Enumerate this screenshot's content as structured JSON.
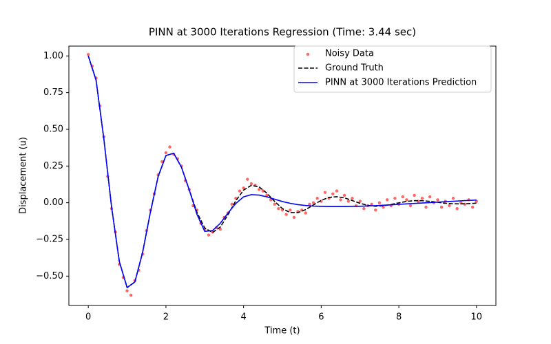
{
  "chart_data": {
    "type": "line",
    "title": "PINN at 3000 Iterations Regression (Time: 3.44 sec)",
    "x_label": "Time (t)",
    "y_label": "Displacement (u)",
    "xlim": [
      -0.5,
      10.5
    ],
    "ylim": [
      -0.7,
      1.067
    ],
    "xticks": [
      0,
      2,
      4,
      6,
      8,
      10
    ],
    "yticks": [
      {
        "value": -0.5,
        "label": "−0.50"
      },
      {
        "value": -0.25,
        "label": "−0.25"
      },
      {
        "value": 0,
        "label": "0.00"
      },
      {
        "value": 0.25,
        "label": "0.25"
      },
      {
        "value": 0.5,
        "label": "0.50"
      },
      {
        "value": 0.75,
        "label": "0.75"
      },
      {
        "value": 1.0,
        "label": "1.00"
      }
    ],
    "legend": "upper right",
    "series": [
      {
        "name": "Noisy Data",
        "color": "#ff0000",
        "style": "scatter",
        "x": [
          0,
          0.1,
          0.2,
          0.3,
          0.4,
          0.5,
          0.6,
          0.7,
          0.8,
          0.9,
          1,
          1.1,
          1.2,
          1.3,
          1.4,
          1.5,
          1.6,
          1.7,
          1.8,
          1.9,
          2,
          2.1,
          2.2,
          2.3,
          2.4,
          2.5,
          2.6,
          2.7,
          2.8,
          2.9,
          3,
          3.1,
          3.2,
          3.3,
          3.4,
          3.5,
          3.6,
          3.7,
          3.8,
          3.9,
          4,
          4.1,
          4.2,
          4.3,
          4.4,
          4.5,
          4.6,
          4.7,
          4.8,
          4.9,
          5,
          5.1,
          5.2,
          5.3,
          5.4,
          5.5,
          5.6,
          5.7,
          5.8,
          5.9,
          6,
          6.1,
          6.2,
          6.3,
          6.4,
          6.5,
          6.6,
          6.7,
          6.8,
          6.9,
          7,
          7.1,
          7.2,
          7.3,
          7.4,
          7.5,
          7.6,
          7.7,
          7.8,
          7.9,
          8,
          8.1,
          8.2,
          8.3,
          8.4,
          8.5,
          8.6,
          8.7,
          8.8,
          8.9,
          9,
          9.1,
          9.2,
          9.3,
          9.4,
          9.5,
          9.6,
          9.7,
          9.8,
          9.9,
          10
        ],
        "values": [
          1.01,
          0.93,
          0.85,
          0.66,
          0.45,
          0.18,
          -0.04,
          -0.2,
          -0.42,
          -0.51,
          -0.6,
          -0.63,
          -0.53,
          -0.46,
          -0.35,
          -0.19,
          -0.05,
          0.06,
          0.19,
          0.28,
          0.34,
          0.38,
          0.33,
          0.3,
          0.25,
          0.15,
          0.09,
          -0.02,
          -0.05,
          -0.14,
          -0.18,
          -0.22,
          -0.2,
          -0.17,
          -0.18,
          -0.1,
          -0.07,
          -0.01,
          0.03,
          0.08,
          0.1,
          0.16,
          0.13,
          0.12,
          0.09,
          0.08,
          0.05,
          0.02,
          -0.01,
          -0.04,
          -0.05,
          -0.08,
          -0.05,
          -0.1,
          -0.06,
          -0.05,
          -0.07,
          -0.01,
          0,
          0.03,
          0.01,
          0.07,
          0.03,
          0.06,
          0.08,
          0.02,
          0.05,
          0.01,
          0.03,
          -0.02,
          0.01,
          -0.04,
          -0.02,
          -0.01,
          -0.05,
          0,
          -0.03,
          0.02,
          -0.02,
          0.03,
          -0.01,
          0.04,
          0.02,
          -0.02,
          0.05,
          0.01,
          0.03,
          -0.03,
          0.04,
          0,
          0.02,
          -0.03,
          0.01,
          -0.02,
          0.03,
          -0.04,
          0,
          -0.01,
          0.02,
          -0.03,
          0.01
        ]
      },
      {
        "name": "Ground Truth",
        "color": "#000000",
        "style": "dashed",
        "x": [
          0,
          0.2,
          0.4,
          0.6,
          0.8,
          1,
          1.2,
          1.4,
          1.6,
          1.8,
          2,
          2.2,
          2.4,
          2.6,
          2.8,
          3,
          3.2,
          3.4,
          3.6,
          3.8,
          4,
          4.2,
          4.4,
          4.6,
          4.8,
          5,
          5.2,
          5.4,
          5.6,
          5.8,
          6,
          6.2,
          6.4,
          6.6,
          6.8,
          7,
          7.2,
          7.4,
          7.6,
          7.8,
          8,
          8.2,
          8.4,
          8.6,
          8.8,
          9,
          9.2,
          9.4,
          9.6,
          9.8,
          10
        ],
        "values": [
          1,
          0.836,
          0.437,
          -0.029,
          -0.401,
          -0.578,
          -0.54,
          -0.338,
          -0.065,
          0.179,
          0.321,
          0.337,
          0.242,
          0.088,
          -0.066,
          -0.172,
          -0.203,
          -0.166,
          -0.081,
          0.013,
          0.086,
          0.118,
          0.108,
          0.065,
          0.009,
          -0.04,
          -0.067,
          -0.068,
          -0.047,
          -0.015,
          0.016,
          0.036,
          0.041,
          0.033,
          0.015,
          -0.004,
          -0.018,
          -0.024,
          -0.021,
          -0.012,
          -0.001,
          0.009,
          0.014,
          0.014,
          0.009,
          0.003,
          -0.004,
          -0.007,
          -0.008,
          -0.006,
          -0.003
        ]
      },
      {
        "name": "PINN at 3000 Iterations Prediction",
        "color": "#0000ff",
        "style": "solid",
        "x": [
          0,
          0.2,
          0.4,
          0.6,
          0.8,
          1,
          1.2,
          1.4,
          1.6,
          1.8,
          2,
          2.2,
          2.4,
          2.6,
          2.8,
          3,
          3.2,
          3.4,
          3.6,
          3.8,
          4,
          4.2,
          4.4,
          4.6,
          4.8,
          5,
          5.2,
          5.4,
          5.6,
          5.8,
          6,
          6.2,
          6.4,
          6.6,
          6.8,
          7,
          7.2,
          7.4,
          7.6,
          7.8,
          8,
          8.2,
          8.4,
          8.6,
          8.8,
          9,
          9.2,
          9.4,
          9.6,
          9.8,
          10
        ],
        "values": [
          1,
          0.836,
          0.437,
          -0.029,
          -0.401,
          -0.578,
          -0.54,
          -0.338,
          -0.065,
          0.179,
          0.321,
          0.337,
          0.242,
          0.088,
          -0.08,
          -0.195,
          -0.19,
          -0.14,
          -0.07,
          -0.005,
          0.04,
          0.055,
          0.052,
          0.04,
          0.024,
          0.008,
          -0.004,
          -0.013,
          -0.019,
          -0.023,
          -0.025,
          -0.026,
          -0.026,
          -0.026,
          -0.025,
          -0.024,
          -0.022,
          -0.02,
          -0.017,
          -0.014,
          -0.011,
          -0.008,
          -0.005,
          -0.002,
          0.001,
          0.004,
          0.007,
          0.01,
          0.013,
          0.016,
          0.018
        ]
      }
    ]
  }
}
